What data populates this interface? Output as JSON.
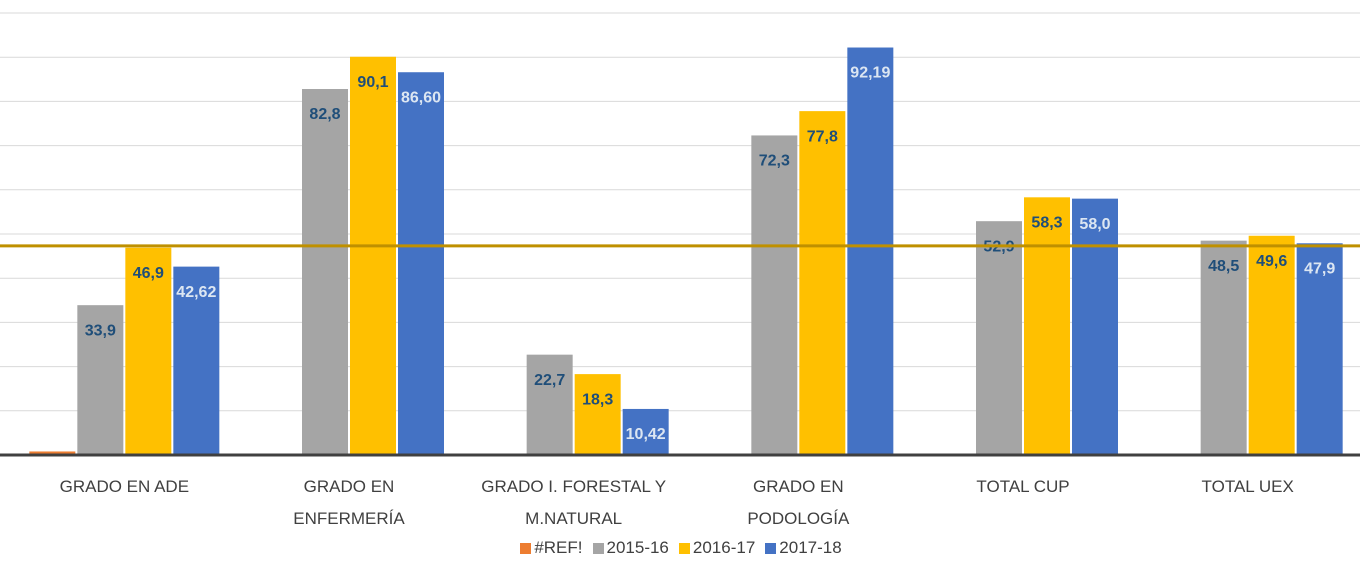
{
  "chart_data": {
    "type": "bar",
    "categories": [
      "GRADO EN ADE",
      "GRADO EN ENFERMERÍA",
      "GRADO I. FORESTAL Y M.NATURAL",
      "GRADO EN PODOLOGÍA",
      "TOTAL CUP",
      "TOTAL UEX"
    ],
    "series": [
      {
        "name": "#REF!",
        "color": "#ed7d31",
        "values": [
          0.8,
          null,
          null,
          null,
          null,
          null
        ]
      },
      {
        "name": "2015-16",
        "color": "#a5a5a5",
        "label_color": "#1f4e79",
        "values": [
          33.9,
          82.8,
          22.7,
          72.3,
          52.9,
          48.5
        ],
        "value_labels": [
          "33,9",
          "82,8",
          "22,7",
          "72,3",
          "52,9",
          "48,5"
        ]
      },
      {
        "name": "2016-17",
        "color": "#ffc000",
        "label_color": "#1f4e79",
        "values": [
          46.9,
          90.1,
          18.3,
          77.8,
          58.3,
          49.6
        ],
        "value_labels": [
          "46,9",
          "90,1",
          "18,3",
          "77,8",
          "58,3",
          "49,6"
        ]
      },
      {
        "name": "2017-18",
        "color": "#4472c4",
        "label_color": "#dce6f2",
        "values": [
          42.62,
          86.6,
          10.42,
          92.19,
          58.0,
          47.9
        ],
        "value_labels": [
          "42,62",
          "86,60",
          "10,42",
          "92,19",
          "58,0",
          "47,9"
        ]
      }
    ],
    "ylim": [
      0,
      100
    ],
    "gridlines": [
      0,
      10,
      20,
      30,
      40,
      50,
      60,
      70,
      80,
      90,
      100
    ],
    "reference_line": {
      "value": 47.3,
      "color": "#bf9000"
    },
    "legend": "bottom"
  }
}
